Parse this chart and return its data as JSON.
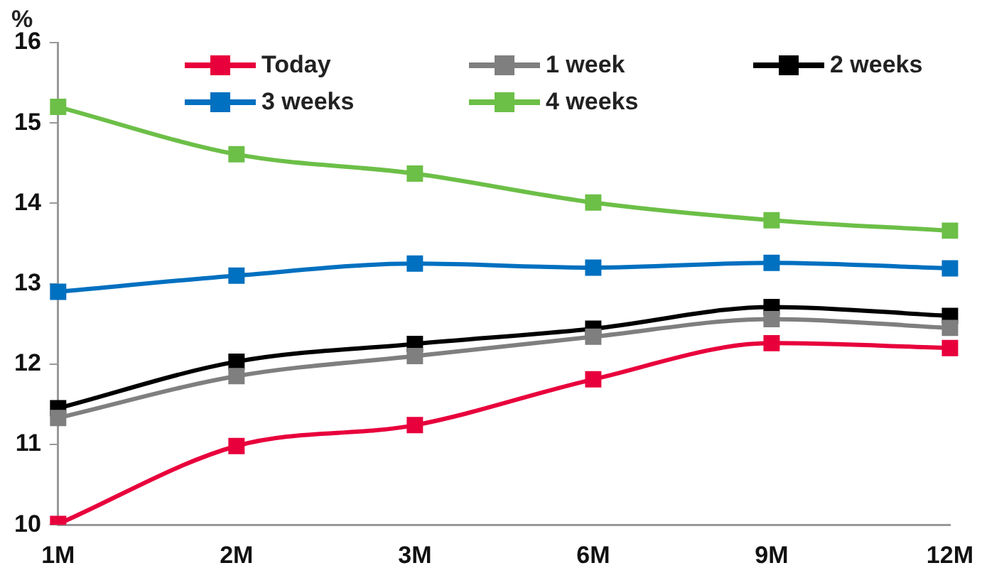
{
  "chart_data": {
    "type": "line",
    "ylabel": "%",
    "categories": [
      "1M",
      "2M",
      "3M",
      "6M",
      "9M",
      "12M"
    ],
    "series": [
      {
        "name": "Today",
        "color": "#e8003c",
        "values": [
          10.01,
          10.98,
          11.24,
          11.81,
          12.26,
          12.2
        ]
      },
      {
        "name": "1 week",
        "color": "#7f7f7f",
        "values": [
          11.33,
          11.85,
          12.1,
          12.34,
          12.56,
          12.45
        ]
      },
      {
        "name": "2 weeks",
        "color": "#000000",
        "values": [
          11.45,
          12.03,
          12.25,
          12.44,
          12.71,
          12.6
        ]
      },
      {
        "name": "3 weeks",
        "color": "#0070c0",
        "values": [
          12.9,
          13.1,
          13.25,
          13.2,
          13.26,
          13.19
        ]
      },
      {
        "name": "4 weeks",
        "color": "#6cbf47",
        "values": [
          15.2,
          14.61,
          14.37,
          14.01,
          13.79,
          13.66
        ]
      }
    ],
    "ylim": [
      10,
      16
    ],
    "yticks": [
      10,
      11,
      12,
      13,
      14,
      15,
      16
    ],
    "grid": false,
    "legend": "top",
    "marker": "square",
    "line_style": "solid"
  }
}
